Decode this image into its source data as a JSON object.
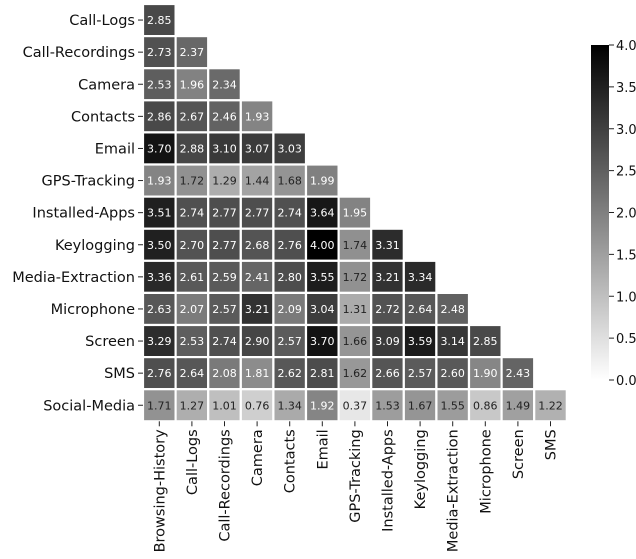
{
  "chart_data": {
    "type": "heatmap",
    "title": "",
    "xlabel": "",
    "ylabel": "",
    "rows": [
      "Call-Logs",
      "Call-Recordings",
      "Camera",
      "Contacts",
      "Email",
      "GPS-Tracking",
      "Installed-Apps",
      "Keylogging",
      "Media-Extraction",
      "Microphone",
      "Screen",
      "SMS",
      "Social-Media"
    ],
    "columns": [
      "Browsing-History",
      "Call-Logs",
      "Call-Recordings",
      "Camera",
      "Contacts",
      "Email",
      "GPS-Tracking",
      "Installed-Apps",
      "Keylogging",
      "Media-Extraction",
      "Microphone",
      "Screen",
      "SMS"
    ],
    "values": [
      [
        2.85
      ],
      [
        2.73,
        2.37
      ],
      [
        2.53,
        1.96,
        2.34
      ],
      [
        2.86,
        2.67,
        2.46,
        1.93
      ],
      [
        3.7,
        2.88,
        3.1,
        3.07,
        3.03
      ],
      [
        1.93,
        1.72,
        1.29,
        1.44,
        1.68,
        1.99
      ],
      [
        3.51,
        2.74,
        2.77,
        2.77,
        2.74,
        3.64,
        1.95
      ],
      [
        3.5,
        2.7,
        2.77,
        2.68,
        2.76,
        4.0,
        1.74,
        3.31
      ],
      [
        3.36,
        2.61,
        2.59,
        2.41,
        2.8,
        3.55,
        1.72,
        3.21,
        3.34
      ],
      [
        2.63,
        2.07,
        2.57,
        3.21,
        2.09,
        3.04,
        1.31,
        2.72,
        2.64,
        2.48
      ],
      [
        3.29,
        2.53,
        2.74,
        2.9,
        2.57,
        3.7,
        1.66,
        3.09,
        3.59,
        3.14,
        2.85
      ],
      [
        2.76,
        2.64,
        2.08,
        1.81,
        2.62,
        2.81,
        1.62,
        2.66,
        2.57,
        2.6,
        1.9,
        2.43
      ],
      [
        1.71,
        1.27,
        1.01,
        0.76,
        1.34,
        1.92,
        0.37,
        1.53,
        1.67,
        1.55,
        0.86,
        1.49,
        1.22
      ]
    ],
    "value_labels": [
      [
        "2.85"
      ],
      [
        "2.73",
        "2.37"
      ],
      [
        "2.53",
        "1.96",
        "2.34"
      ],
      [
        "2.86",
        "2.67",
        "2.46",
        "1.93"
      ],
      [
        "3.70",
        "2.88",
        "3.10",
        "3.07",
        "3.03"
      ],
      [
        "1.93",
        "1.72",
        "1.29",
        "1.44",
        "1.68",
        "1.99"
      ],
      [
        "3.51",
        "2.74",
        "2.77",
        "2.77",
        "2.74",
        "3.64",
        "1.95"
      ],
      [
        "3.50",
        "2.70",
        "2.77",
        "2.68",
        "2.76",
        "4.00",
        "1.74",
        "3.31"
      ],
      [
        "3.36",
        "2.61",
        "2.59",
        "2.41",
        "2.80",
        "3.55",
        "1.72",
        "3.21",
        "3.34"
      ],
      [
        "2.63",
        "2.07",
        "2.57",
        "3.21",
        "2.09",
        "3.04",
        "1.31",
        "2.72",
        "2.64",
        "2.48"
      ],
      [
        "3.29",
        "2.53",
        "2.74",
        "2.90",
        "2.57",
        "3.70",
        "1.66",
        "3.09",
        "3.59",
        "3.14",
        "2.85"
      ],
      [
        "2.76",
        "2.64",
        "2.08",
        "1.81",
        "2.62",
        "2.81",
        "1.62",
        "2.66",
        "2.57",
        "2.60",
        "1.90",
        "2.43"
      ],
      [
        "1.71",
        "1.27",
        "1.01",
        "0.76",
        "1.34",
        "1.92",
        "0.37",
        "1.53",
        "1.67",
        "1.55",
        "0.86",
        "1.49",
        "1.22"
      ]
    ],
    "colorbar": {
      "min": 0.0,
      "max": 4.0,
      "ticks": [
        "0.0",
        "0.5",
        "1.0",
        "1.5",
        "2.0",
        "2.5",
        "3.0",
        "3.5",
        "4.0"
      ],
      "color_low": "#ffffff",
      "color_high": "#000000"
    },
    "cell_border_color": "#ffffff",
    "layout": "lower-triangle",
    "grid": false
  }
}
